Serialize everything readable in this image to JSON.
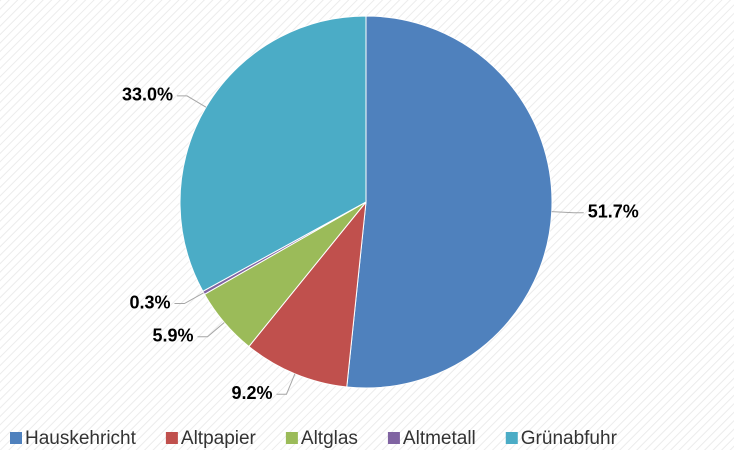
{
  "chart_data": {
    "type": "pie",
    "categories": [
      "Hauskehricht",
      "Altpapier",
      "Altglas",
      "Altmetall",
      "Grünabfuhr"
    ],
    "values": [
      51.7,
      9.2,
      5.9,
      0.3,
      33.0
    ],
    "value_labels": [
      "51.7%",
      "9.2%",
      "5.9%",
      "0.3%",
      "33.0%"
    ],
    "colors": [
      "#4f81bd",
      "#c0504d",
      "#9bbb59",
      "#8064a2",
      "#4bacc6"
    ],
    "legend": "bottom"
  }
}
